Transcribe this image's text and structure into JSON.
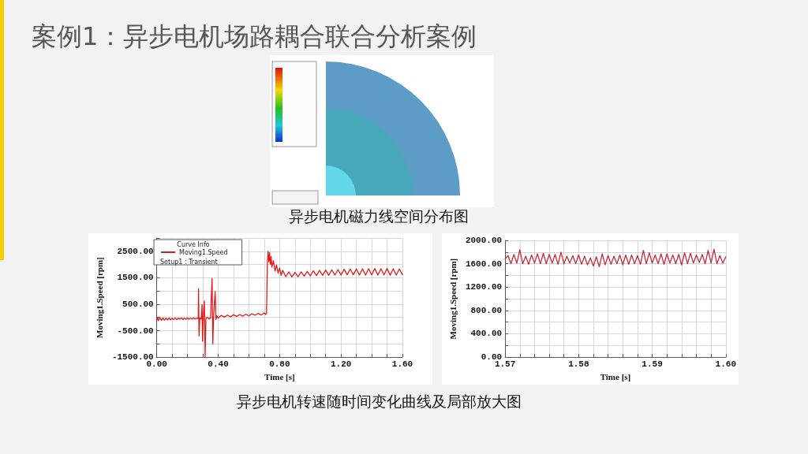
{
  "chart_data": [
    {
      "type": "line",
      "title": "案例1：异步电机场路耦合联合分析案例",
      "xlabel": "Time [s]",
      "ylabel": "Moving1.Speed [rpm]",
      "legend_title": "Curve Info",
      "annotations": [
        "Setup1 : Transient",
        "异步电机磁力线空间分布图",
        "异步电机转速随时间变化曲线及局部放大图"
      ],
      "x": [
        0,
        0.005,
        0.01,
        0.02,
        0.03,
        0.04,
        0.05,
        0.06,
        0.07,
        0.08,
        0.09,
        0.1,
        0.11,
        0.12,
        0.13,
        0.14,
        0.15,
        0.16,
        0.17,
        0.18,
        0.19,
        0.2,
        0.21,
        0.22,
        0.23,
        0.24,
        0.25,
        0.26,
        0.27,
        0.272,
        0.275,
        0.28,
        0.29,
        0.295,
        0.298,
        0.302,
        0.31,
        0.315,
        0.32,
        0.33,
        0.34,
        0.35,
        0.36,
        0.365,
        0.37,
        0.38,
        0.386,
        0.39,
        0.4,
        0.42,
        0.44,
        0.46,
        0.48,
        0.5,
        0.52,
        0.54,
        0.56,
        0.58,
        0.6,
        0.62,
        0.64,
        0.66,
        0.68,
        0.7,
        0.71,
        0.715,
        0.72,
        0.725,
        0.73,
        0.735,
        0.74,
        0.745,
        0.75,
        0.76,
        0.77,
        0.78,
        0.79,
        0.8,
        0.81,
        0.82,
        0.84,
        0.86,
        0.88,
        0.9,
        0.92,
        0.94,
        0.96,
        0.98,
        1,
        1.02,
        1.04,
        1.06,
        1.08,
        1.1,
        1.12,
        1.14,
        1.16,
        1.18,
        1.2,
        1.22,
        1.24,
        1.26,
        1.28,
        1.3,
        1.32,
        1.34,
        1.36,
        1.38,
        1.4,
        1.42,
        1.44,
        1.46,
        1.48,
        1.5,
        1.52,
        1.54,
        1.56,
        1.58,
        1.6
      ],
      "series": [
        {
          "name": "Moving1.Speed",
          "color": "#e31a1a",
          "values": [
            -100,
            0,
            -120,
            -10,
            -110,
            -20,
            -100,
            -30,
            -90,
            -20,
            -90,
            -30,
            -80,
            -20,
            -80,
            -30,
            -70,
            -20,
            -80,
            -30,
            -70,
            -20,
            -70,
            -30,
            -60,
            -20,
            -60,
            -30,
            -50,
            1080,
            -700,
            -20,
            -60,
            490,
            -900,
            -80,
            620,
            -1500,
            -40,
            0,
            -60,
            -20,
            1480,
            -1000,
            0,
            980,
            -80,
            60,
            -20,
            80,
            10,
            90,
            20,
            100,
            40,
            110,
            50,
            120,
            60,
            140,
            80,
            150,
            90,
            170,
            110,
            160,
            2000,
            2500,
            2100,
            2450,
            2000,
            2300,
            1900,
            2150,
            1750,
            1980,
            1680,
            1870,
            1590,
            1780,
            1540,
            1720,
            1530,
            1700,
            1540,
            1720,
            1560,
            1740,
            1570,
            1760,
            1580,
            1780,
            1590,
            1790,
            1590,
            1800,
            1600,
            1810,
            1600,
            1820,
            1610,
            1830,
            1610,
            1830,
            1600,
            1840,
            1600,
            1840,
            1610,
            1850,
            1600,
            1840,
            1610,
            1850,
            1590,
            1840,
            1600,
            1830,
            1620
          ]
        }
      ],
      "xlim": [
        0,
        1.6
      ],
      "xticks": [
        {
          "value": 0,
          "label": "0.00"
        },
        {
          "value": 0.1,
          "label": null
        },
        {
          "value": 0.2,
          "label": null
        },
        {
          "value": 0.3,
          "label": null
        },
        {
          "value": 0.4,
          "label": "0.40"
        },
        {
          "value": 0.5,
          "label": null
        },
        {
          "value": 0.6,
          "label": null
        },
        {
          "value": 0.7,
          "label": null
        },
        {
          "value": 0.8,
          "label": "0.80"
        },
        {
          "value": 0.9,
          "label": null
        },
        {
          "value": 1,
          "label": null
        },
        {
          "value": 1.1,
          "label": null
        },
        {
          "value": 1.2,
          "label": "1.20"
        },
        {
          "value": 1.3,
          "label": null
        },
        {
          "value": 1.4,
          "label": null
        },
        {
          "value": 1.5,
          "label": null
        },
        {
          "value": 1.6,
          "label": "1.60"
        }
      ],
      "ylim": [
        -1500,
        3000
      ],
      "yticks": [
        {
          "value": -1500,
          "label": "-1500.00"
        },
        {
          "value": -1000,
          "label": null
        },
        {
          "value": -500,
          "label": "-500.00"
        },
        {
          "value": 0,
          "label": null
        },
        {
          "value": 500,
          "label": "500.00"
        },
        {
          "value": 1000,
          "label": null
        },
        {
          "value": 1500,
          "label": "1500.00"
        },
        {
          "value": 2000,
          "label": null
        },
        {
          "value": 2500,
          "label": "2500.00"
        },
        {
          "value": 3000,
          "label": null
        }
      ],
      "grid": true,
      "legend": "top left",
      "marker": "none",
      "line_style": "solid"
    },
    {
      "type": "line",
      "xlabel": "Time [s]",
      "ylabel": "Moving1.Speed [rpm]",
      "x": [
        1.57,
        1.5704,
        1.5708,
        1.5712,
        1.5716,
        1.572,
        1.5724,
        1.5728,
        1.5732,
        1.5736,
        1.574,
        1.5744,
        1.5748,
        1.5752,
        1.5756,
        1.576,
        1.5764,
        1.5768,
        1.5772,
        1.5776,
        1.578,
        1.5784,
        1.5788,
        1.5792,
        1.5796,
        1.58,
        1.5804,
        1.5808,
        1.5812,
        1.5816,
        1.582,
        1.5824,
        1.5828,
        1.5832,
        1.5836,
        1.584,
        1.5844,
        1.5848,
        1.5852,
        1.5856,
        1.586,
        1.5864,
        1.5868,
        1.5872,
        1.5876,
        1.588,
        1.5884,
        1.5888,
        1.5892,
        1.5896,
        1.59,
        1.5904,
        1.5908,
        1.5912,
        1.5916,
        1.592,
        1.5924,
        1.5928,
        1.5932,
        1.5936,
        1.594,
        1.5944,
        1.5948,
        1.5952,
        1.5956,
        1.596,
        1.5964,
        1.5968,
        1.5972,
        1.5976,
        1.598,
        1.5984,
        1.5988,
        1.5992,
        1.5996,
        1.6
      ],
      "series": [
        {
          "color": "#c62b3b",
          "values": [
            1680,
            1740,
            1600,
            1760,
            1610,
            1840,
            1600,
            1730,
            1590,
            1750,
            1610,
            1770,
            1600,
            1780,
            1600,
            1760,
            1610,
            1760,
            1590,
            1800,
            1600,
            1730,
            1610,
            1740,
            1600,
            1750,
            1590,
            1730,
            1580,
            1700,
            1560,
            1720,
            1550,
            1770,
            1580,
            1740,
            1590,
            1730,
            1600,
            1750,
            1580,
            1750,
            1590,
            1750,
            1600,
            1740,
            1590,
            1830,
            1600,
            1790,
            1610,
            1750,
            1600,
            1770,
            1590,
            1770,
            1610,
            1750,
            1600,
            1760,
            1580,
            1790,
            1600,
            1780,
            1610,
            1750,
            1620,
            1760,
            1600,
            1830,
            1610,
            1850,
            1600,
            1740,
            1610,
            1720
          ]
        }
      ],
      "xlim": [
        1.57,
        1.6
      ],
      "xticks": [
        {
          "value": 1.57,
          "label": "1.57"
        },
        {
          "value": 1.572,
          "label": null
        },
        {
          "value": 1.574,
          "label": null
        },
        {
          "value": 1.576,
          "label": null
        },
        {
          "value": 1.578,
          "label": null
        },
        {
          "value": 1.58,
          "label": "1.58"
        },
        {
          "value": 1.582,
          "label": null
        },
        {
          "value": 1.584,
          "label": null
        },
        {
          "value": 1.586,
          "label": null
        },
        {
          "value": 1.588,
          "label": null
        },
        {
          "value": 1.59,
          "label": "1.59"
        },
        {
          "value": 1.592,
          "label": null
        },
        {
          "value": 1.594,
          "label": null
        },
        {
          "value": 1.596,
          "label": null
        },
        {
          "value": 1.598,
          "label": null
        },
        {
          "value": 1.6,
          "label": "1.60"
        }
      ],
      "ylim": [
        0,
        2000
      ],
      "yticks": [
        {
          "value": 0,
          "label": "0.00"
        },
        {
          "value": 200,
          "label": null
        },
        {
          "value": 400,
          "label": "400.00"
        },
        {
          "value": 600,
          "label": null
        },
        {
          "value": 800,
          "label": "800.00"
        },
        {
          "value": 1000,
          "label": null
        },
        {
          "value": 1200,
          "label": "1200.00"
        },
        {
          "value": 1400,
          "label": null
        },
        {
          "value": 1600,
          "label": "1600.00"
        },
        {
          "value": 1800,
          "label": null
        },
        {
          "value": 2000,
          "label": "2000.00"
        }
      ],
      "grid": true,
      "marker": "none",
      "line_style": "solid"
    }
  ]
}
